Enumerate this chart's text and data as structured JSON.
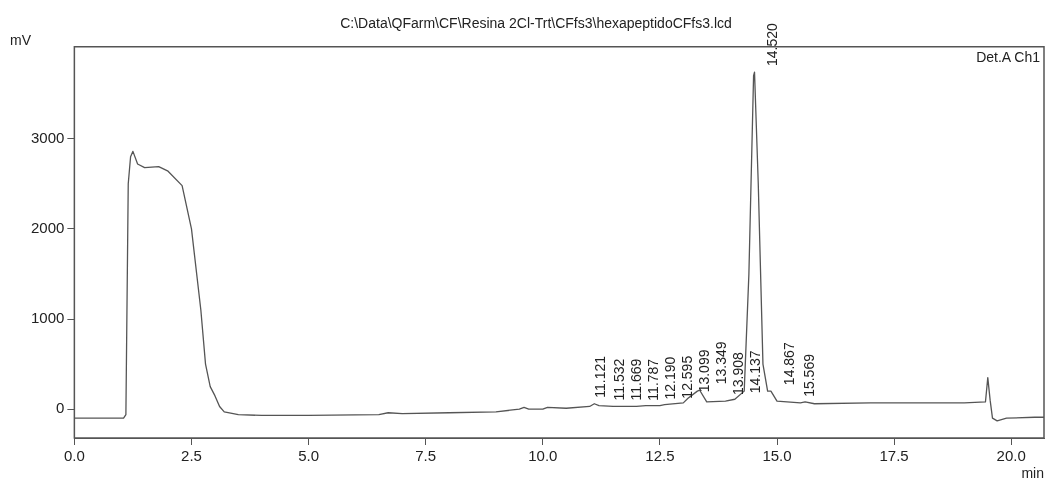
{
  "chart_data": {
    "type": "line",
    "title": "C:\\Data\\QFarm\\CF\\Resina 2Cl-Trt\\CFfs3\\hexapeptidoCFfs3.lcd",
    "xlabel": "min",
    "ylabel": "mV",
    "x": [
      0,
      1.05,
      1.1,
      1.15,
      1.2,
      1.25,
      1.35,
      1.5,
      1.8,
      2.0,
      2.3,
      2.5,
      2.7,
      2.8,
      2.9,
      3.0,
      3.1,
      3.2,
      3.5,
      4,
      5,
      6.5,
      6.7,
      7,
      8,
      9,
      9.5,
      9.6,
      9.7,
      10,
      10.1,
      10.5,
      11,
      11.1,
      11.2,
      11.5,
      12,
      12.2,
      12.5,
      12.6,
      13,
      13.1,
      13.3,
      13.35,
      13.5,
      13.9,
      14.1,
      14.3,
      14.4,
      14.5,
      14.52,
      14.6,
      14.7,
      14.8,
      14.87,
      15,
      15.5,
      15.6,
      15.8,
      17,
      19,
      19.45,
      19.5,
      19.55,
      19.6,
      19.7,
      19.9,
      20.5,
      20.7
    ],
    "series": [
      {
        "color": "#555555",
        "values": [
          -100,
          -100,
          -60,
          2500,
          2800,
          2860,
          2720,
          2680,
          2690,
          2640,
          2480,
          2000,
          1100,
          500,
          250,
          150,
          30,
          -30,
          -60,
          -70,
          -70,
          -60,
          -40,
          -50,
          -40,
          -30,
          0,
          20,
          0,
          0,
          20,
          10,
          30,
          60,
          40,
          30,
          30,
          40,
          40,
          50,
          70,
          120,
          200,
          210,
          80,
          90,
          110,
          200,
          1500,
          3700,
          3740,
          2500,
          500,
          200,
          200,
          90,
          70,
          80,
          60,
          70,
          70,
          80,
          350,
          100,
          -100,
          -130,
          -100,
          -90,
          -90
        ]
      }
    ],
    "xlim": [
      0,
      20.7
    ],
    "ylim": [
      -320,
      4020
    ],
    "xticks": [
      {
        "value": 0,
        "label": "0.0"
      },
      {
        "value": 2.5,
        "label": "2.5"
      },
      {
        "value": 5,
        "label": "5.0"
      },
      {
        "value": 7.5,
        "label": "7.5"
      },
      {
        "value": 10,
        "label": "10.0"
      },
      {
        "value": 12.5,
        "label": "12.5"
      },
      {
        "value": 15,
        "label": "15.0"
      },
      {
        "value": 17.5,
        "label": "17.5"
      },
      {
        "value": 20,
        "label": "20.0"
      }
    ],
    "yticks": [
      0,
      1000,
      2000,
      3000
    ],
    "grid": false,
    "legend": false,
    "marker": "none",
    "line_style": "solid",
    "annotations": [
      "Det.A Ch1",
      {
        "text": "11.121",
        "x": 11.121,
        "y": 60
      },
      {
        "text": "11.532",
        "x": 11.532,
        "y": 30
      },
      {
        "text": "11.669",
        "x": 11.669,
        "y": 30
      },
      {
        "text": "11.787",
        "x": 11.787,
        "y": 28
      },
      {
        "text": "12.190",
        "x": 12.19,
        "y": 40
      },
      {
        "text": "12.595",
        "x": 12.595,
        "y": 50
      },
      {
        "text": "13.099",
        "x": 13.099,
        "y": 120
      },
      {
        "text": "13.349",
        "x": 13.349,
        "y": 210
      },
      {
        "text": "13.908",
        "x": 13.908,
        "y": 90
      },
      {
        "text": "14.137",
        "x": 14.137,
        "y": 110
      },
      {
        "text": "14.520",
        "x": 14.52,
        "y": 3740
      },
      {
        "text": "14.867",
        "x": 14.867,
        "y": 200
      },
      {
        "text": "15.569",
        "x": 15.569,
        "y": 70
      }
    ]
  }
}
